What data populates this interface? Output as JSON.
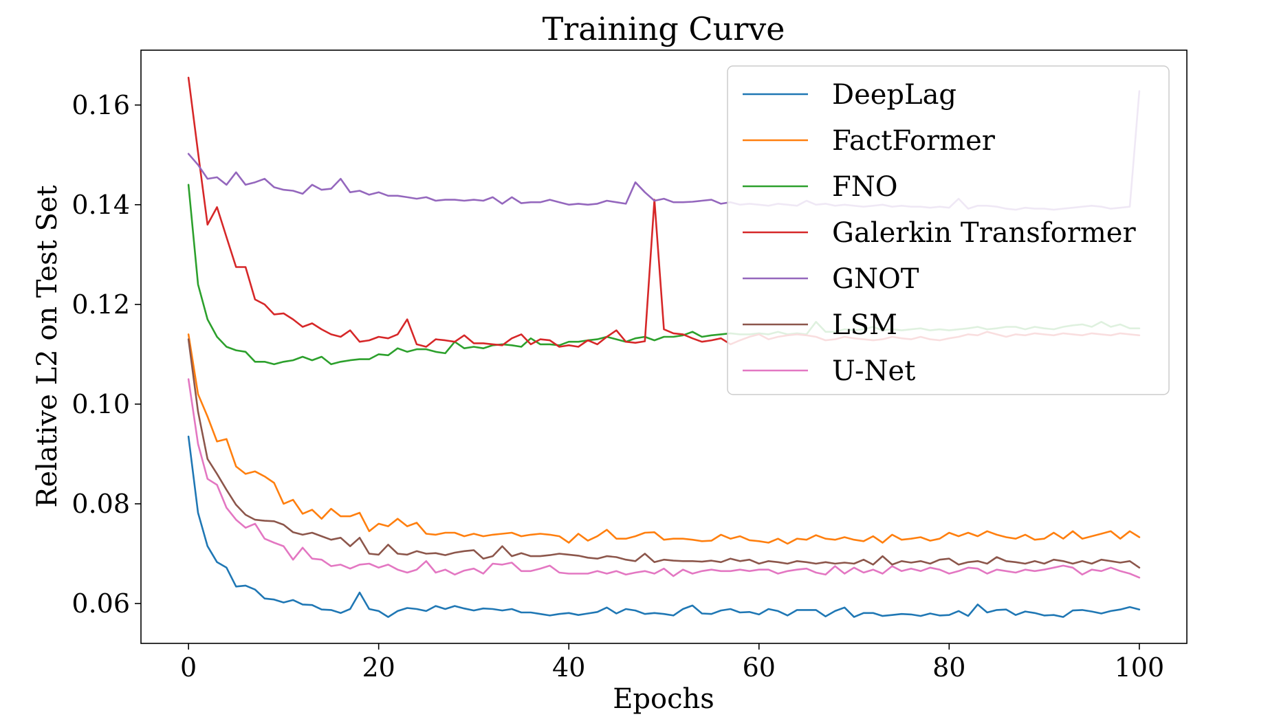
{
  "chart_data": {
    "type": "line",
    "title": "Training Curve",
    "xlabel": "Epochs",
    "ylabel": "Relative L2 on Test Set",
    "xlim": [
      -5,
      105
    ],
    "ylim": [
      0.052,
      0.171
    ],
    "xticks": [
      0,
      20,
      40,
      60,
      80,
      100
    ],
    "xtick_labels": [
      "0",
      "20",
      "40",
      "60",
      "80",
      "100"
    ],
    "yticks": [
      0.06,
      0.08,
      0.1,
      0.12,
      0.14,
      0.16
    ],
    "ytick_labels": [
      "0.06",
      "0.08",
      "0.10",
      "0.12",
      "0.14",
      "0.16"
    ],
    "grid": false,
    "legend_position": "upper right",
    "series": [
      {
        "name": "DeepLag",
        "color": "#1f77b4",
        "values": [
          0.0935,
          0.0782,
          0.0715,
          0.0683,
          0.0672,
          0.0634,
          0.0636,
          0.0628,
          0.061,
          0.0608,
          0.0602,
          0.0607,
          0.0598,
          0.0597,
          0.0588,
          0.0587,
          0.0581,
          0.0589,
          0.0622,
          0.0589,
          0.0585,
          0.0573,
          0.0585,
          0.0591,
          0.0589,
          0.0585,
          0.0595,
          0.0589,
          0.0595,
          0.059,
          0.0586,
          0.059,
          0.0589,
          0.0586,
          0.0589,
          0.0582,
          0.0582,
          0.0579,
          0.0576,
          0.0579,
          0.0581,
          0.0577,
          0.058,
          0.0583,
          0.0592,
          0.058,
          0.0589,
          0.0586,
          0.0579,
          0.0581,
          0.0579,
          0.0576,
          0.0589,
          0.0596,
          0.058,
          0.0579,
          0.0586,
          0.0589,
          0.0582,
          0.0583,
          0.0578,
          0.0589,
          0.0585,
          0.0576,
          0.0587,
          0.0587,
          0.0587,
          0.0574,
          0.0585,
          0.0592,
          0.0573,
          0.0581,
          0.0581,
          0.0575,
          0.0577,
          0.0579,
          0.0578,
          0.0575,
          0.058,
          0.0576,
          0.0577,
          0.0585,
          0.0575,
          0.0598,
          0.0582,
          0.0587,
          0.0588,
          0.0577,
          0.0584,
          0.0581,
          0.0576,
          0.0577,
          0.0573,
          0.0586,
          0.0587,
          0.0584,
          0.058,
          0.0585,
          0.0588,
          0.0593,
          0.0588
        ]
      },
      {
        "name": "FactFormer",
        "color": "#ff7f0e",
        "values": [
          0.114,
          0.102,
          0.0975,
          0.0925,
          0.093,
          0.0875,
          0.086,
          0.0865,
          0.0855,
          0.0842,
          0.08,
          0.0808,
          0.078,
          0.0788,
          0.077,
          0.079,
          0.0775,
          0.0775,
          0.0782,
          0.0745,
          0.076,
          0.0755,
          0.077,
          0.0755,
          0.0762,
          0.074,
          0.0738,
          0.0742,
          0.0742,
          0.0735,
          0.074,
          0.0735,
          0.0738,
          0.074,
          0.0742,
          0.0735,
          0.0738,
          0.074,
          0.0738,
          0.0735,
          0.0722,
          0.074,
          0.0726,
          0.0735,
          0.0748,
          0.073,
          0.073,
          0.0735,
          0.0742,
          0.0743,
          0.0728,
          0.073,
          0.073,
          0.0728,
          0.0725,
          0.0726,
          0.0738,
          0.073,
          0.0735,
          0.0727,
          0.0725,
          0.0722,
          0.073,
          0.072,
          0.073,
          0.0728,
          0.0737,
          0.073,
          0.0728,
          0.0733,
          0.0728,
          0.0725,
          0.0735,
          0.0722,
          0.0738,
          0.0728,
          0.073,
          0.0733,
          0.0726,
          0.073,
          0.0742,
          0.0735,
          0.0742,
          0.0735,
          0.0745,
          0.0738,
          0.0733,
          0.073,
          0.0738,
          0.0728,
          0.073,
          0.0742,
          0.073,
          0.0745,
          0.073,
          0.0735,
          0.074,
          0.0745,
          0.073,
          0.0745,
          0.0733
        ]
      },
      {
        "name": "FNO",
        "color": "#2ca02c",
        "values": [
          0.144,
          0.124,
          0.117,
          0.1135,
          0.1115,
          0.1108,
          0.1105,
          0.1085,
          0.1085,
          0.108,
          0.1085,
          0.1088,
          0.1095,
          0.1088,
          0.1095,
          0.108,
          0.1085,
          0.1088,
          0.109,
          0.109,
          0.11,
          0.1098,
          0.1112,
          0.1105,
          0.111,
          0.111,
          0.1105,
          0.1102,
          0.1125,
          0.1112,
          0.1115,
          0.1112,
          0.1118,
          0.112,
          0.1118,
          0.1115,
          0.1132,
          0.112,
          0.112,
          0.1118,
          0.1125,
          0.1125,
          0.1128,
          0.113,
          0.1135,
          0.113,
          0.1125,
          0.1132,
          0.1135,
          0.1128,
          0.1135,
          0.1135,
          0.1138,
          0.1145,
          0.1135,
          0.1138,
          0.114,
          0.1142,
          0.114,
          0.114,
          0.1142,
          0.114,
          0.1145,
          0.114,
          0.1142,
          0.114,
          0.1165,
          0.1145,
          0.1145,
          0.115,
          0.1148,
          0.115,
          0.1155,
          0.1148,
          0.115,
          0.1148,
          0.115,
          0.1152,
          0.1148,
          0.115,
          0.1148,
          0.115,
          0.1152,
          0.1155,
          0.115,
          0.1152,
          0.1155,
          0.1155,
          0.115,
          0.1155,
          0.1152,
          0.115,
          0.1155,
          0.1158,
          0.116,
          0.1155,
          0.1165,
          0.1155,
          0.116,
          0.1152,
          0.1152
        ]
      },
      {
        "name": "Galerkin Transformer",
        "color": "#d62728",
        "values": [
          0.1655,
          0.1505,
          0.136,
          0.1395,
          0.1335,
          0.1275,
          0.1275,
          0.121,
          0.12,
          0.118,
          0.1182,
          0.117,
          0.1155,
          0.1162,
          0.115,
          0.114,
          0.1135,
          0.1148,
          0.1125,
          0.1128,
          0.1135,
          0.1132,
          0.114,
          0.117,
          0.112,
          0.1115,
          0.113,
          0.1128,
          0.1125,
          0.1138,
          0.1122,
          0.1122,
          0.112,
          0.1118,
          0.1132,
          0.114,
          0.112,
          0.113,
          0.1128,
          0.1115,
          0.1118,
          0.1115,
          0.1128,
          0.112,
          0.1135,
          0.1148,
          0.1125,
          0.1123,
          0.1126,
          0.141,
          0.115,
          0.1142,
          0.114,
          0.1132,
          0.1125,
          0.1128,
          0.1132,
          0.112,
          0.1128,
          0.1135,
          0.114,
          0.113,
          0.1135,
          0.1138,
          0.114,
          0.1138,
          0.1135,
          0.1128,
          0.113,
          0.1135,
          0.1132,
          0.113,
          0.1128,
          0.113,
          0.1135,
          0.1132,
          0.113,
          0.1135,
          0.113,
          0.1128,
          0.1132,
          0.1135,
          0.114,
          0.1138,
          0.1145,
          0.114,
          0.1135,
          0.114,
          0.1138,
          0.1142,
          0.114,
          0.1138,
          0.1142,
          0.114,
          0.1138,
          0.1142,
          0.114,
          0.1138,
          0.1142,
          0.114,
          0.1138
        ]
      },
      {
        "name": "GNOT",
        "color": "#9467bd",
        "values": [
          0.1502,
          0.148,
          0.1452,
          0.1455,
          0.144,
          0.1465,
          0.144,
          0.1445,
          0.1452,
          0.1435,
          0.143,
          0.1428,
          0.1422,
          0.144,
          0.143,
          0.1432,
          0.1452,
          0.1425,
          0.1428,
          0.142,
          0.1425,
          0.1418,
          0.1418,
          0.1415,
          0.1412,
          0.1415,
          0.1408,
          0.141,
          0.141,
          0.1408,
          0.141,
          0.1408,
          0.1415,
          0.1402,
          0.1415,
          0.1403,
          0.1405,
          0.1405,
          0.141,
          0.1405,
          0.14,
          0.1402,
          0.14,
          0.1402,
          0.1408,
          0.1405,
          0.1402,
          0.1445,
          0.1425,
          0.1408,
          0.1412,
          0.1405,
          0.1405,
          0.1406,
          0.1408,
          0.141,
          0.1402,
          0.1405,
          0.14,
          0.1402,
          0.14,
          0.1398,
          0.1402,
          0.14,
          0.1398,
          0.1408,
          0.14,
          0.1402,
          0.1398,
          0.14,
          0.1398,
          0.1396,
          0.1398,
          0.14,
          0.1396,
          0.1398,
          0.1396,
          0.1396,
          0.1394,
          0.1396,
          0.1394,
          0.1412,
          0.1392,
          0.1398,
          0.1398,
          0.1396,
          0.1392,
          0.139,
          0.1394,
          0.1392,
          0.1392,
          0.139,
          0.1392,
          0.1394,
          0.1396,
          0.1398,
          0.1396,
          0.1392,
          0.1394,
          0.1396,
          0.1628
        ]
      },
      {
        "name": "LSM",
        "color": "#8c564b",
        "values": [
          0.113,
          0.0985,
          0.089,
          0.086,
          0.0828,
          0.0798,
          0.0778,
          0.0768,
          0.0766,
          0.0765,
          0.0758,
          0.0743,
          0.0738,
          0.0742,
          0.0735,
          0.0728,
          0.0732,
          0.0715,
          0.0732,
          0.07,
          0.0698,
          0.0718,
          0.07,
          0.0698,
          0.0705,
          0.07,
          0.0701,
          0.0697,
          0.0702,
          0.0705,
          0.0707,
          0.069,
          0.0695,
          0.0715,
          0.0695,
          0.0701,
          0.0695,
          0.0695,
          0.0697,
          0.07,
          0.0698,
          0.0696,
          0.0692,
          0.069,
          0.0695,
          0.0693,
          0.0688,
          0.0685,
          0.07,
          0.0683,
          0.0688,
          0.0686,
          0.0685,
          0.0685,
          0.0684,
          0.0686,
          0.0683,
          0.069,
          0.0685,
          0.0688,
          0.068,
          0.0685,
          0.0683,
          0.068,
          0.0685,
          0.0683,
          0.068,
          0.0683,
          0.068,
          0.0682,
          0.068,
          0.0688,
          0.0678,
          0.0695,
          0.0678,
          0.0685,
          0.0682,
          0.0685,
          0.068,
          0.0688,
          0.069,
          0.0678,
          0.0683,
          0.0685,
          0.068,
          0.0693,
          0.0685,
          0.0683,
          0.068,
          0.0685,
          0.068,
          0.0688,
          0.0685,
          0.068,
          0.0685,
          0.068,
          0.0688,
          0.0685,
          0.0682,
          0.0685,
          0.0672
        ]
      },
      {
        "name": "U-Net",
        "color": "#e377c2",
        "values": [
          0.105,
          0.092,
          0.085,
          0.0838,
          0.0792,
          0.0768,
          0.0752,
          0.076,
          0.073,
          0.0722,
          0.0715,
          0.0688,
          0.0712,
          0.069,
          0.0688,
          0.0675,
          0.0678,
          0.067,
          0.0678,
          0.068,
          0.0672,
          0.0678,
          0.0668,
          0.0662,
          0.0668,
          0.0685,
          0.0662,
          0.0668,
          0.0658,
          0.0666,
          0.067,
          0.066,
          0.068,
          0.0678,
          0.0682,
          0.0665,
          0.0665,
          0.067,
          0.0676,
          0.0662,
          0.066,
          0.066,
          0.066,
          0.0665,
          0.066,
          0.0665,
          0.0658,
          0.0662,
          0.0665,
          0.066,
          0.067,
          0.0655,
          0.0668,
          0.066,
          0.0665,
          0.0668,
          0.0665,
          0.0665,
          0.0668,
          0.0665,
          0.0668,
          0.0668,
          0.066,
          0.0665,
          0.0668,
          0.067,
          0.0662,
          0.0658,
          0.0675,
          0.066,
          0.0672,
          0.0662,
          0.0668,
          0.066,
          0.0675,
          0.0665,
          0.067,
          0.0665,
          0.0672,
          0.0668,
          0.066,
          0.0665,
          0.0672,
          0.067,
          0.066,
          0.0668,
          0.0665,
          0.0662,
          0.0668,
          0.0665,
          0.0668,
          0.0672,
          0.0676,
          0.0672,
          0.0658,
          0.0668,
          0.0665,
          0.0672,
          0.0665,
          0.066,
          0.0652
        ]
      }
    ]
  }
}
